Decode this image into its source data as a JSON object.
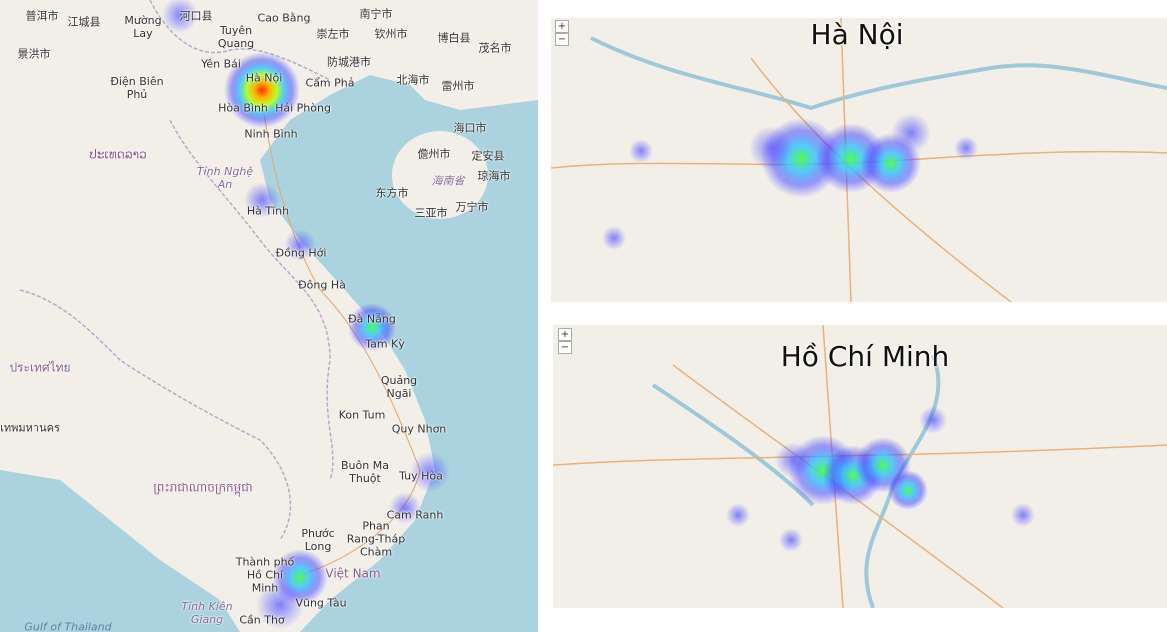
{
  "main_map": {
    "labels": [
      "普洱市",
      "江城县",
      "河口县",
      "Mường Lay",
      "Tuyên Quang",
      "Cao Bằng",
      "崇左市",
      "南宁市",
      "钦州市",
      "博白县",
      "茂名市",
      "景洪市",
      "Yên Bái",
      "防城港市",
      "北海市",
      "Hà Nội",
      "Cẩm Phả",
      "雷州市",
      "Điện Biên Phủ",
      "Hòa Bình",
      "Hải Phòng",
      "Ninh Bình",
      "海口市",
      "儋州市",
      "定安县",
      "海南省",
      "琼海市",
      "东方市",
      "万宁市",
      "三亚市",
      "ປະເທດລາວ",
      "Tỉnh Nghệ An",
      "Hà Tĩnh",
      "Đồng Hới",
      "Đông Hà",
      "Đà Nẵng",
      "Tam Kỳ",
      "ประเทศไทย",
      "Quảng Ngãi",
      "Kon Tum",
      "Quy Nhơn",
      "Buôn Ma Thuột",
      "Tuy Hòa",
      "Cam Ranh",
      "Phan Rang-Tháp Chàm",
      "Phước Long",
      "ព្រះរាជាណាចក្រកម្ពុជា",
      "Thành phố Hồ Chí Minh",
      "Việt Nam",
      "Vũng Tàu",
      "Cần Thơ",
      "Tỉnh Kiên Giang",
      "Gulf of Thailand",
      "เทพมหานคร"
    ]
  },
  "hanoi_map": {
    "title": "Hà Nội",
    "zoom_in": "+",
    "zoom_out": "−"
  },
  "hcm_map": {
    "title": "Hồ Chí Minh",
    "zoom_in": "+",
    "zoom_out": "−"
  }
}
